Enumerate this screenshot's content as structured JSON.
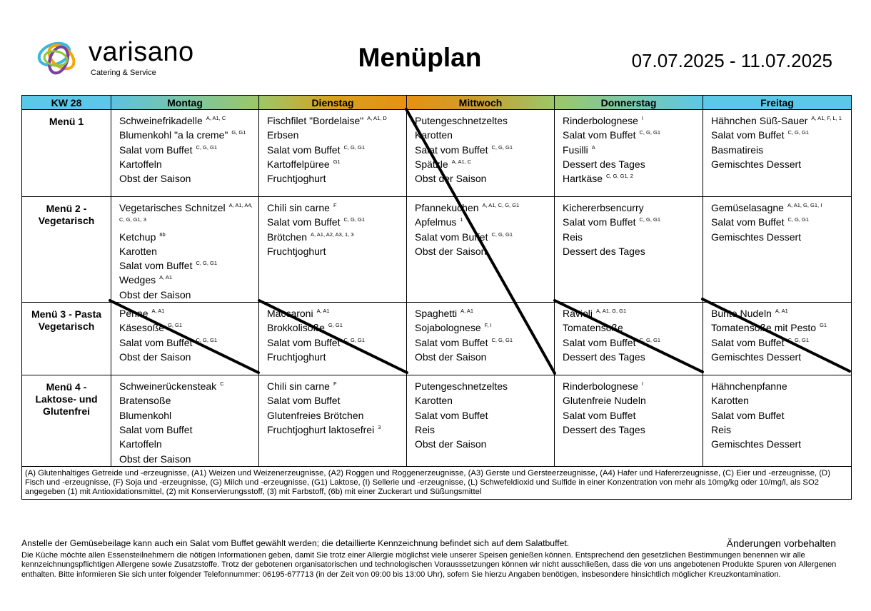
{
  "header": {
    "logo_name": "varisano",
    "logo_sub": "Catering & Service",
    "title": "Menüplan",
    "date_range": "07.07.2025 - 11.07.2025"
  },
  "table": {
    "corner": "KW 28",
    "days": [
      "Montag",
      "Dienstag",
      "Mittwoch",
      "Donnerstag",
      "Freitag"
    ],
    "rows": [
      {
        "label": "Menü 1",
        "cells": [
          [
            {
              "text": "Schweinefrikadelle",
              "sup": "A, A1, C"
            },
            {
              "text": "Blumenkohl \"a la creme\"",
              "sup": "G, G1"
            },
            {
              "text": "Salat vom Buffet",
              "sup": "C, G, G1"
            },
            {
              "text": "Kartoffeln"
            },
            {
              "text": "Obst der Saison"
            }
          ],
          [
            {
              "text": "Fischfilet \"Bordelaise\"",
              "sup": "A, A1, D"
            },
            {
              "text": "Erbsen"
            },
            {
              "text": "Salat vom Buffet",
              "sup": "C, G, G1"
            },
            {
              "text": "Kartoffelpüree",
              "sup": "G1"
            },
            {
              "text": "Fruchtjoghurt"
            }
          ],
          [
            {
              "text": "Putengeschnetzeltes"
            },
            {
              "text": "Karotten"
            },
            {
              "text": "Salat vom Buffet",
              "sup": "C, G, G1"
            },
            {
              "text": "Spätzle",
              "sup": "A, A1, C"
            },
            {
              "text": "Obst der Saison"
            }
          ],
          [
            {
              "text": "Rinderbolognese",
              "sup": "I"
            },
            {
              "text": "Salat vom Buffet",
              "sup": "C, G, G1"
            },
            {
              "text": "Fusilli",
              "sup": "A"
            },
            {
              "text": "Dessert des Tages"
            },
            {
              "text": "Hartkäse",
              "sup": "C, G, G1, 2"
            }
          ],
          [
            {
              "text": "Hähnchen Süß-Sauer",
              "sup": "A, A1, F, L, 1"
            },
            {
              "text": "Salat vom Buffet",
              "sup": "C, G, G1"
            },
            {
              "text": "Basmatireis"
            },
            {
              "text": "Gemischtes Dessert"
            }
          ]
        ]
      },
      {
        "label": "Menü 2 - Vegetarisch",
        "cells": [
          [
            {
              "text": "Vegetarisches Schnitzel",
              "sup": "A, A1, A4, C, G, G1, 3"
            },
            {
              "text": "Ketchup",
              "sup": "6b"
            },
            {
              "text": "Karotten"
            },
            {
              "text": "Salat vom Buffet",
              "sup": "C, G, G1"
            },
            {
              "text": "Wedges",
              "sup": "A, A1"
            },
            {
              "text": "Obst der Saison"
            }
          ],
          [
            {
              "text": "Chili sin carne",
              "sup": "F"
            },
            {
              "text": "Salat vom Buffet",
              "sup": "C, G, G1"
            },
            {
              "text": "Brötchen",
              "sup": "A, A1, A2, A3, 1, 3"
            },
            {
              "text": "Fruchtjoghurt"
            }
          ],
          [
            {
              "text": "Pfannekuchen",
              "sup": "A, A1, C, G, G1"
            },
            {
              "text": "Apfelmus",
              "sup": "1"
            },
            {
              "text": "Salat vom Buffet",
              "sup": "C, G, G1"
            },
            {
              "text": "Obst der Saison"
            }
          ],
          [
            {
              "text": "Kichererbsencurry"
            },
            {
              "text": "Salat vom Buffet",
              "sup": "C, G, G1"
            },
            {
              "text": "Reis"
            },
            {
              "text": "Dessert des Tages"
            }
          ],
          [
            {
              "text": "Gemüselasagne",
              "sup": "A, A1, G, G1, I"
            },
            {
              "text": "Salat vom Buffet",
              "sup": "C, G, G1"
            },
            {
              "text": "Gemischtes Dessert"
            }
          ]
        ]
      },
      {
        "label": "Menü 3 - Pasta Vegetarisch",
        "cells": [
          [
            {
              "text": "Penne",
              "sup": "A, A1"
            },
            {
              "text": "Käsesoße",
              "sup": "G, G1"
            },
            {
              "text": "Salat vom Buffet",
              "sup": "C, G, G1"
            },
            {
              "text": "Obst der Saison"
            }
          ],
          [
            {
              "text": "Maccaroni",
              "sup": "A, A1"
            },
            {
              "text": "Brokkolisoße",
              "sup": "G, G1"
            },
            {
              "text": "Salat vom Buffet",
              "sup": "C, G, G1"
            },
            {
              "text": "Fruchtjoghurt"
            }
          ],
          [
            {
              "text": "Spaghetti",
              "sup": "A, A1"
            },
            {
              "text": "Sojabolognese",
              "sup": "F, I"
            },
            {
              "text": "Salat vom Buffet",
              "sup": "C, G, G1"
            },
            {
              "text": "Obst der Saison"
            }
          ],
          [
            {
              "text": "Ravioli",
              "sup": "A, A1, G, G1"
            },
            {
              "text": "Tomatensoße"
            },
            {
              "text": "Salat vom Buffet",
              "sup": "C, G, G1"
            },
            {
              "text": "Dessert des Tages"
            }
          ],
          [
            {
              "text": "Bunte Nudeln",
              "sup": "A, A1"
            },
            {
              "text": "Tomatensoße mit Pesto",
              "sup": "G1"
            },
            {
              "text": "Salat vom Buffet",
              "sup": "C, G, G1"
            },
            {
              "text": "Gemischtes Dessert"
            }
          ]
        ]
      },
      {
        "label": "Menü 4 - Laktose- und Glutenfrei",
        "cells": [
          [
            {
              "text": "Schweinerückensteak",
              "sup": "C"
            },
            {
              "text": "Bratensoße"
            },
            {
              "text": "Blumenkohl"
            },
            {
              "text": "Salat vom Buffet"
            },
            {
              "text": "Kartoffeln"
            },
            {
              "text": "Obst der Saison"
            }
          ],
          [
            {
              "text": "Chili sin carne",
              "sup": "F"
            },
            {
              "text": "Salat vom Buffet"
            },
            {
              "text": "Glutenfreies Brötchen"
            },
            {
              "text": "Fruchtjoghurt laktosefrei",
              "sup": "3"
            }
          ],
          [
            {
              "text": "Putengeschnetzeltes"
            },
            {
              "text": "Karotten"
            },
            {
              "text": "Salat vom Buffet"
            },
            {
              "text": "Reis"
            },
            {
              "text": "Obst der Saison"
            }
          ],
          [
            {
              "text": "Rinderbolognese",
              "sup": "I"
            },
            {
              "text": "Glutenfreie Nudeln"
            },
            {
              "text": "Salat vom Buffet"
            },
            {
              "text": "Dessert des Tages"
            }
          ],
          [
            {
              "text": "Hähnchenpfanne"
            },
            {
              "text": "Karotten"
            },
            {
              "text": "Salat vom Buffet"
            },
            {
              "text": "Reis"
            },
            {
              "text": "Gemischtes Dessert"
            }
          ]
        ]
      }
    ],
    "footnote": "(A) Glutenhaltiges Getreide und -erzeugnisse, (A1) Weizen und Weizenerzeugnisse, (A2) Roggen und Roggenerzeugnisse, (A3) Gerste und Gersteerzeugnisse, (A4) Hafer und Hafererzeugnisse, (C) Eier und -erzeugnisse, (D) Fisch und -erzeugnisse, (F) Soja und -erzeugnisse, (G) Milch und -erzeugnisse, (G1) Laktose, (I) Sellerie und -erzeugnisse, (L) Schwefeldioxid und Sulfide in einer Konzentration von mehr als 10mg/kg oder 10/mg/l, als SO2 angegeben (1) mit Antioxidationsmittel, (2) mit Konservierungsstoff, (3) mit Farbstoff, (6b) mit einer Zuckerart und Süßungsmittel"
  },
  "notes": {
    "salad": "Anstelle der Gemüsebeilage kann auch ein Salat vom Buffet gewählt werden; die detaillierte Kennzeichnung befindet sich auf dem Salatbuffet.",
    "changes": "Änderungen vorbehalten",
    "disclaimer": "Die Küche möchte allen Essensteilnehmern die nötigen Informationen geben, damit Sie trotz einer Allergie möglichst viele unserer Speisen genießen können. Entsprechend den gesetzlichen Bestimmungen benennen wir alle kennzeichnungspflichtigen Allergene sowie Zusatzstoffe. Trotz der gebotenen organisatorischen und technologischen Vorausssetzungen können wir nicht ausschließen, dass die von uns angebotenen Produkte Spuren von Allergenen enthalten. Bitte informieren Sie sich unter folgender Telefonnummer: 06195-677713 (in der Zeit von 09:00 bis 13:00 Uhr), sofern Sie hierzu Angaben benötigen, insbesondere hinsichtlich möglicher Kreuzkontamination."
  }
}
